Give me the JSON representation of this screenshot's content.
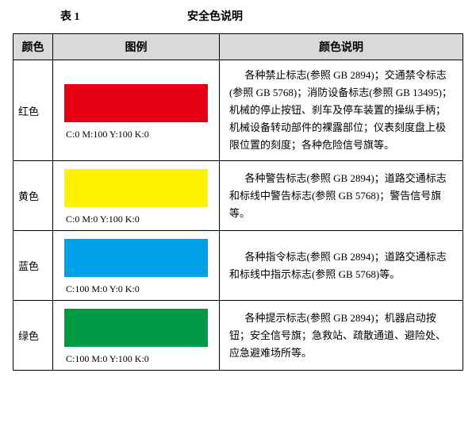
{
  "caption": {
    "number": "表 1",
    "title": "安全色说明"
  },
  "headers": {
    "color": "颜色",
    "swatch": "图例",
    "desc": "颜色说明"
  },
  "rows": [
    {
      "name": "红色",
      "swatch_color": "#e60012",
      "cmyk": "C:0    M:100   Y:100   K:0",
      "desc": "各种禁止标志(参照 GB 2894)；交通禁令标志(参照 GB 5768)；消防设备标志(参照 GB 13495)；机械的停止按钮、刹车及停车装置的操纵手柄；机械设备转动部件的裸露部位；仪表刻度盘上极限位置的刻度；各种危险信号旗等。"
    },
    {
      "name": "黄色",
      "swatch_color": "#fff100",
      "cmyk": "C:0    M:0   Y:100   K:0",
      "desc": "各种警告标志(参照 GB 2894)；道路交通标志和标线中警告标志(参照 GB 5768)；警告信号旗等。"
    },
    {
      "name": "蓝色",
      "swatch_color": "#00a0e9",
      "cmyk": "C:100   M:0   Y:0   K:0",
      "desc": "各种指令标志(参照 GB 2894)；道路交通标志和标线中指示标志(参照 GB 5768)等。"
    },
    {
      "name": "绿色",
      "swatch_color": "#009944",
      "cmyk": "C:100   M:0   Y:100   K:0",
      "desc": "各种提示标志(参照 GB 2894)；机器启动按钮；安全信号旗；急救站、疏散通道、避险处、应急避难场所等。"
    }
  ]
}
